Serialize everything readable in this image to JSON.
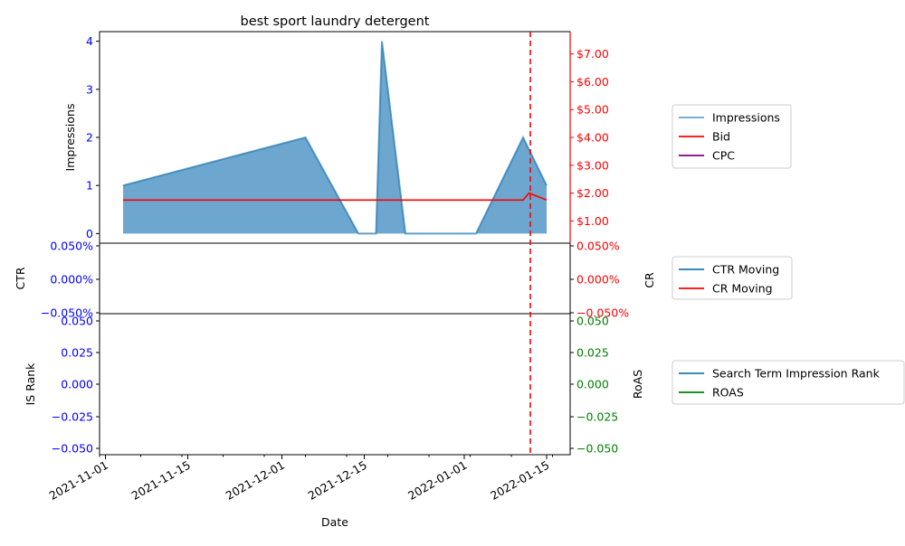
{
  "chart_data": {
    "type": "area",
    "title": "best sport laundry detergent",
    "xlabel": "Date",
    "x_ticks": [
      "2021-11-01",
      "2021-11-15",
      "2021-12-01",
      "2021-12-15",
      "2022-01-01",
      "2022-01-15"
    ],
    "xlim": [
      "2021-10-31",
      "2022-01-19"
    ],
    "event_line_date": "2022-01-12",
    "panels": [
      {
        "left_ylabel": "Impressions",
        "left_ylim": [
          -0.2,
          4.2
        ],
        "left_ticks": [
          "0",
          "1",
          "2",
          "3",
          "4"
        ],
        "left_tick_color": "#0000ff",
        "right_ylabel": "",
        "right_ylim": [
          0.2,
          7.8
        ],
        "right_ticks": [
          "$1.00",
          "$2.00",
          "$3.00",
          "$4.00",
          "$5.00",
          "$6.00",
          "$7.00"
        ],
        "right_tick_color": "#ff0000",
        "series": [
          {
            "name": "Impressions",
            "kind": "area",
            "color": "#1f77b4",
            "x": [
              "2021-11-04",
              "2021-12-05",
              "2021-12-14",
              "2021-12-17",
              "2021-12-18",
              "2021-12-22",
              "2022-01-03",
              "2022-01-11",
              "2022-01-15"
            ],
            "y": [
              1,
              2,
              0,
              0,
              4,
              0,
              0,
              2,
              1
            ]
          },
          {
            "name": "Bid",
            "kind": "line",
            "color": "#ff0000",
            "x": [
              "2021-11-04",
              "2022-01-11",
              "2022-01-12",
              "2022-01-15"
            ],
            "y": [
              1.75,
              1.75,
              2.0,
              1.75
            ]
          },
          {
            "name": "CPC",
            "kind": "line",
            "color": "#800080",
            "x": [],
            "y": []
          }
        ]
      },
      {
        "left_ylabel": "CTR",
        "left_ticks": [
          "0.050%",
          "0.000%",
          "−0.050%"
        ],
        "left_tick_color": "#0000ff",
        "right_ylabel": "CR",
        "right_ticks": [
          "0.050%",
          "0.000%",
          "−0.050%"
        ],
        "right_tick_color": "#ff0000",
        "series": [
          {
            "name": "CTR Moving",
            "kind": "line",
            "color": "#1f77b4",
            "x": [],
            "y": []
          },
          {
            "name": "CR Moving",
            "kind": "line",
            "color": "#ff0000",
            "x": [],
            "y": []
          }
        ]
      },
      {
        "left_ylabel": "IS Rank",
        "left_ticks": [
          "0.050",
          "0.025",
          "0.000",
          "−0.025",
          "−0.050"
        ],
        "left_tick_color": "#0000ff",
        "right_ylabel": "RoAS",
        "right_ticks": [
          "0.050",
          "0.025",
          "0.000",
          "−0.025",
          "−0.050"
        ],
        "right_tick_color": "#008000",
        "series": [
          {
            "name": "Search Term Impression Rank",
            "kind": "line",
            "color": "#1f77b4",
            "x": [],
            "y": []
          },
          {
            "name": "ROAS",
            "kind": "line",
            "color": "#008000",
            "x": [],
            "y": []
          }
        ]
      }
    ],
    "legend_placement": "right"
  }
}
